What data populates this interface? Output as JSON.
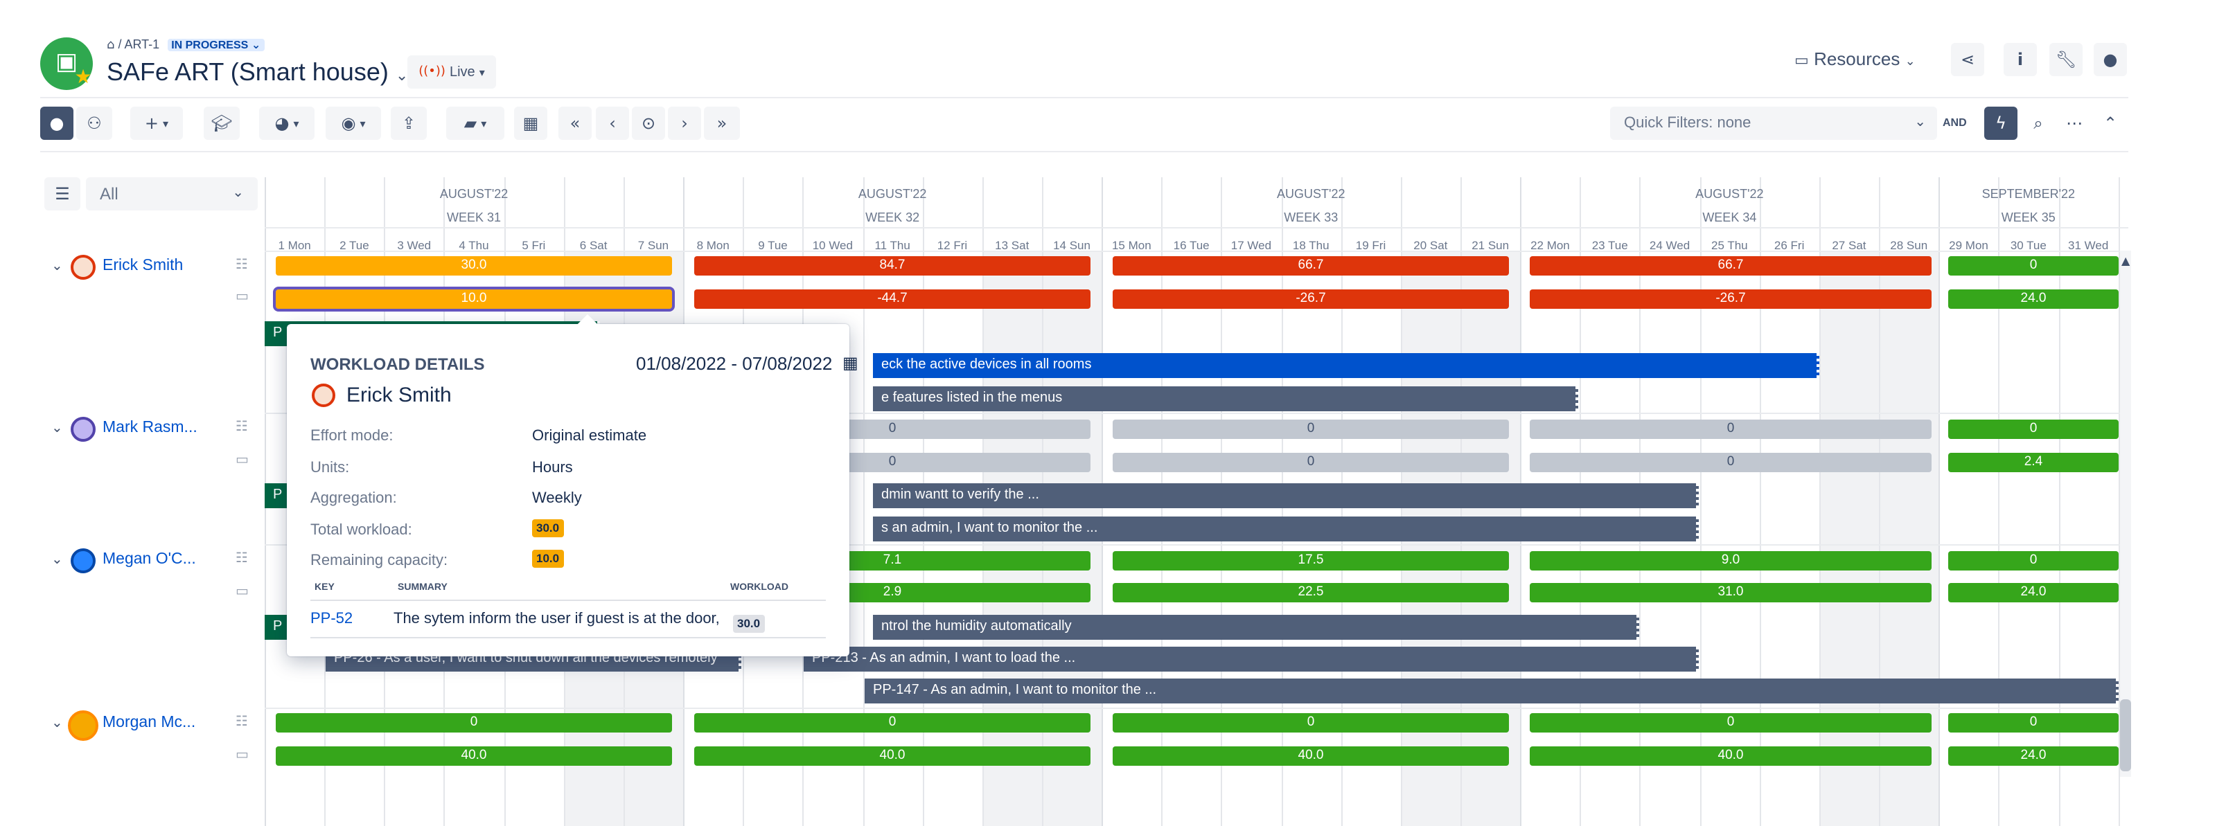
{
  "breadcrumb": {
    "parent": "ART-1",
    "status": "IN PROGRESS"
  },
  "title": "SAFe ART (Smart house)",
  "live_label": "Live",
  "resources_label": "Resources",
  "quick_filter": {
    "label": "Quick Filters: none",
    "and_label": "AND"
  },
  "resource_filter": "All",
  "months": [
    "AUGUST'22",
    "AUGUST'22",
    "AUGUST'22",
    "AUGUST'22",
    "SEPTEMBER'22"
  ],
  "weeks": [
    "WEEK 31",
    "WEEK 32",
    "WEEK 33",
    "WEEK 34",
    "WEEK 35"
  ],
  "days": [
    "1 Mon",
    "2 Tue",
    "3 Wed",
    "4 Thu",
    "5 Fri",
    "6 Sat",
    "7 Sun",
    "8 Mon",
    "9 Tue",
    "10 Wed",
    "11 Thu",
    "12 Fri",
    "13 Sat",
    "14 Sun",
    "15 Mon",
    "16 Tue",
    "17 Wed",
    "18 Thu",
    "19 Fri",
    "20 Sat",
    "21 Sun",
    "22 Mon",
    "23 Tue",
    "24 Wed",
    "25 Thu",
    "26 Fri",
    "27 Sat",
    "28 Sun",
    "29 Mon",
    "30 Tue",
    "31 Wed"
  ],
  "people": [
    {
      "name": "Erick Smith",
      "workload": [
        "30.0",
        "84.7",
        "66.7",
        "66.7",
        "0"
      ],
      "capacity": [
        "10.0",
        "-44.7",
        "-26.7",
        "-26.7",
        "24.0"
      ]
    },
    {
      "name": "Mark Rasm...",
      "workload": [
        "",
        "0",
        "0",
        "0",
        "0"
      ],
      "capacity": [
        "",
        "0",
        "0",
        "0",
        "2.4"
      ]
    },
    {
      "name": "Megan O'C...",
      "workload": [
        "",
        "7.1",
        "17.5",
        "9.0",
        "0"
      ],
      "capacity": [
        "",
        "2.9",
        "22.5",
        "31.0",
        "24.0"
      ]
    },
    {
      "name": "Morgan Mc...",
      "workload": [
        "0",
        "0",
        "0",
        "0",
        "0"
      ],
      "capacity": [
        "40.0",
        "40.0",
        "40.0",
        "40.0",
        "24.0"
      ]
    }
  ],
  "tasks": [
    {
      "label": "P"
    },
    {
      "label": "eck the active devices in all rooms"
    },
    {
      "label": "e features listed in the menus"
    },
    {
      "label": "P"
    },
    {
      "label": "dmin wantt to verify the ..."
    },
    {
      "label": "s an admin, I want to monitor the ..."
    },
    {
      "label": "P"
    },
    {
      "label": "ntrol the humidity automatically"
    },
    {
      "label": "PP-26 - As a user, I want to shut down all the devices remotely"
    },
    {
      "label": "PP-213 - As an admin, I want to load the ..."
    },
    {
      "label": "PP-147 - As an admin, I want to monitor the ..."
    }
  ],
  "tooltip": {
    "heading": "WORKLOAD DETAILS",
    "range": "01/08/2022 - 07/08/2022",
    "person": "Erick Smith",
    "rows": [
      {
        "k": "Effort mode:",
        "v": "Original estimate"
      },
      {
        "k": "Units:",
        "v": "Hours"
      },
      {
        "k": "Aggregation:",
        "v": "Weekly"
      },
      {
        "k": "Total workload:",
        "v": "30.0"
      },
      {
        "k": "Remaining capacity:",
        "v": "10.0"
      }
    ],
    "columns": [
      "KEY",
      "SUMMARY",
      "WORKLOAD"
    ],
    "issue": {
      "key": "PP-52",
      "summary": "The sytem inform the user if guest is at the door,",
      "workload": "30.0"
    }
  },
  "colors": {
    "overload": "#de350b",
    "partial": "#ffab00",
    "free": "#36a61b",
    "unassigned": "#c1c7d0",
    "task": "#505f79",
    "task_selected": "#0052cc",
    "epic": "#006644"
  }
}
